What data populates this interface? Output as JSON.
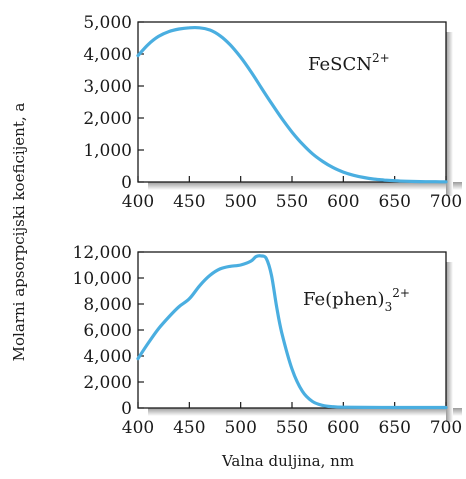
{
  "chart_data": [
    {
      "type": "line",
      "annotation": "FeSCN",
      "annotation_sup": "2+",
      "annotation_sub": "",
      "xlim": [
        400,
        700
      ],
      "ylim": [
        0,
        5000
      ],
      "x_ticks": [
        "400",
        "450",
        "500",
        "550",
        "600",
        "650",
        "700"
      ],
      "y_ticks": [
        "0",
        "1,000",
        "2,000",
        "3,000",
        "4,000",
        "5,000"
      ],
      "line_color": "#4aaee0",
      "grid": false,
      "series": [
        {
          "x": [
            400,
            410,
            420,
            430,
            440,
            450,
            460,
            470,
            480,
            490,
            500,
            510,
            520,
            530,
            540,
            550,
            560,
            570,
            580,
            590,
            600,
            610,
            620,
            630,
            640,
            650,
            660,
            670,
            680,
            690,
            700
          ],
          "y": [
            3950,
            4300,
            4550,
            4700,
            4780,
            4820,
            4820,
            4750,
            4570,
            4280,
            3900,
            3450,
            2950,
            2460,
            1990,
            1560,
            1190,
            880,
            640,
            450,
            310,
            210,
            140,
            90,
            60,
            40,
            25,
            15,
            10,
            8,
            5
          ]
        }
      ]
    },
    {
      "type": "line",
      "annotation": "Fe(phen)",
      "annotation_sub": "3",
      "annotation_sup": "2+",
      "xlim": [
        400,
        700
      ],
      "ylim": [
        0,
        12000
      ],
      "x_ticks": [
        "400",
        "450",
        "500",
        "550",
        "600",
        "650",
        "700"
      ],
      "y_ticks": [
        "0",
        "2,000",
        "4,000",
        "6,000",
        "8,000",
        "10,000",
        "12,000"
      ],
      "line_color": "#4aaee0",
      "grid": false,
      "series": [
        {
          "x": [
            400,
            410,
            420,
            430,
            440,
            450,
            460,
            470,
            480,
            490,
            500,
            510,
            515,
            520,
            525,
            530,
            535,
            540,
            550,
            560,
            570,
            580,
            590,
            600,
            620,
            650,
            700
          ],
          "y": [
            3800,
            5000,
            6100,
            7000,
            7800,
            8400,
            9400,
            10200,
            10700,
            10900,
            11000,
            11300,
            11650,
            11700,
            11500,
            10200,
            7800,
            5800,
            3000,
            1300,
            500,
            200,
            100,
            60,
            50,
            40,
            40
          ]
        }
      ]
    }
  ],
  "ylabel": "Molarni apsorpcijski  koeficijent, a",
  "xlabel": "Valna duljina, nm"
}
